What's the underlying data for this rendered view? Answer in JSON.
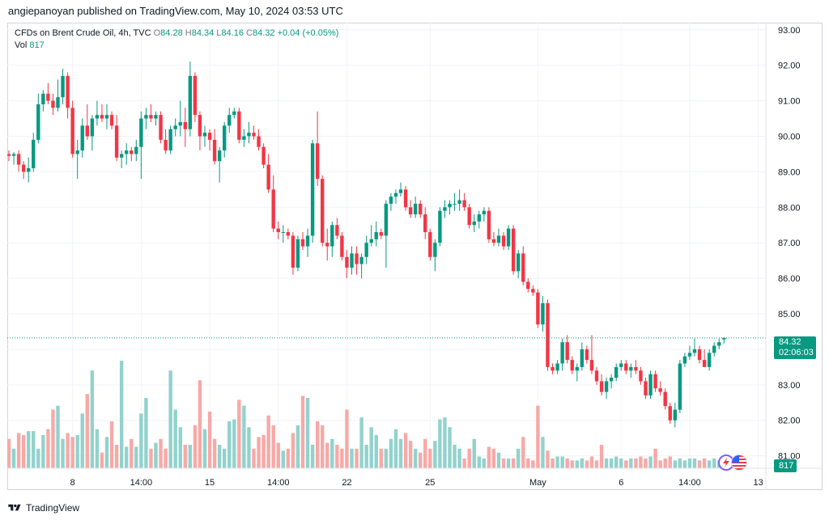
{
  "header": {
    "text": "angiepanoyan published on TradingView.com, May 10, 2024 03:53 UTC"
  },
  "legend": {
    "symbol": "CFDs on Brent Crude Oil, 4h, TVC",
    "o_label": "O",
    "o_value": "84.28",
    "h_label": "H",
    "h_value": "84.34",
    "l_label": "L",
    "l_value": "84.16",
    "c_label": "C",
    "c_value": "84.32",
    "change": "+0.04 (+0.05%)",
    "vol_label": "Vol",
    "vol_value": "817"
  },
  "last_price": {
    "price": "84.32",
    "countdown": "02:06:03",
    "volume": "817"
  },
  "footer": {
    "brand": "TradingView"
  },
  "colors": {
    "up": "#089981",
    "down": "#f23645",
    "up_vol": "#92d2cc",
    "down_vol": "#f7a9a7",
    "grid": "#f0f3fa",
    "text": "#131722"
  },
  "icons": [
    "bolt-event-icon",
    "us-flag-icon",
    "tradingview-logo-icon"
  ],
  "chart_data": {
    "type": "candlestick",
    "title": "CFDs on Brent Crude Oil, 4h, TVC",
    "ylim": [
      80.65,
      93.2
    ],
    "y_ticks": [
      "93.00",
      "92.00",
      "91.00",
      "90.00",
      "89.00",
      "88.00",
      "87.00",
      "86.00",
      "85.00",
      "84.00",
      "83.00",
      "82.00",
      "81.00"
    ],
    "x_ticks": [
      {
        "label": "8",
        "index": 13
      },
      {
        "label": "14:00",
        "index": 27
      },
      {
        "label": "15",
        "index": 41
      },
      {
        "label": "14:00",
        "index": 55
      },
      {
        "label": "22",
        "index": 69
      },
      {
        "label": "25",
        "index": 86
      },
      {
        "label": "May",
        "index": 108
      },
      {
        "label": "6",
        "index": 125
      },
      {
        "label": "14:00",
        "index": 139
      },
      {
        "label": "13",
        "index": 153
      }
    ],
    "ohlc": [
      [
        89.5,
        89.6,
        89.3,
        89.45
      ],
      [
        89.45,
        89.55,
        89.2,
        89.5
      ],
      [
        89.5,
        89.6,
        89.0,
        89.2
      ],
      [
        89.2,
        89.3,
        88.8,
        89.0
      ],
      [
        89.0,
        89.4,
        88.7,
        89.1
      ],
      [
        89.1,
        90.1,
        89.0,
        89.9
      ],
      [
        89.9,
        91.2,
        89.8,
        90.9
      ],
      [
        90.9,
        91.3,
        90.7,
        91.2
      ],
      [
        91.2,
        91.5,
        90.9,
        91.0
      ],
      [
        91.0,
        91.2,
        90.6,
        90.8
      ],
      [
        90.8,
        91.6,
        90.7,
        91.1
      ],
      [
        91.1,
        91.9,
        90.9,
        91.7
      ],
      [
        91.7,
        91.8,
        90.5,
        90.8
      ],
      [
        90.8,
        91.0,
        89.4,
        89.5
      ],
      [
        89.5,
        89.9,
        88.8,
        89.6
      ],
      [
        89.6,
        90.5,
        89.4,
        90.3
      ],
      [
        90.3,
        90.9,
        89.9,
        90.0
      ],
      [
        90.0,
        90.6,
        89.6,
        90.5
      ],
      [
        90.5,
        91.0,
        90.3,
        90.6
      ],
      [
        90.6,
        90.9,
        90.4,
        90.5
      ],
      [
        90.5,
        90.9,
        90.2,
        90.6
      ],
      [
        90.6,
        90.7,
        90.2,
        90.3
      ],
      [
        90.3,
        90.6,
        89.3,
        89.4
      ],
      [
        89.4,
        89.6,
        89.1,
        89.5
      ],
      [
        89.5,
        89.8,
        89.2,
        89.6
      ],
      [
        89.6,
        89.7,
        89.3,
        89.5
      ],
      [
        89.5,
        89.9,
        89.3,
        89.7
      ],
      [
        89.7,
        90.7,
        88.8,
        90.5
      ],
      [
        90.5,
        90.8,
        90.2,
        90.6
      ],
      [
        90.6,
        90.9,
        90.4,
        90.5
      ],
      [
        90.5,
        90.7,
        90.3,
        90.6
      ],
      [
        90.6,
        90.7,
        89.8,
        89.9
      ],
      [
        89.9,
        90.2,
        89.5,
        89.6
      ],
      [
        89.6,
        90.3,
        89.5,
        90.2
      ],
      [
        90.2,
        90.5,
        90.0,
        90.3
      ],
      [
        90.3,
        91.0,
        90.0,
        90.4
      ],
      [
        90.4,
        90.8,
        89.7,
        90.2
      ],
      [
        90.2,
        92.1,
        90.0,
        91.7
      ],
      [
        91.7,
        91.8,
        90.4,
        90.6
      ],
      [
        90.6,
        90.7,
        89.6,
        90.0
      ],
      [
        90.0,
        90.3,
        89.7,
        90.1
      ],
      [
        90.1,
        90.2,
        89.6,
        89.9
      ],
      [
        89.9,
        90.2,
        89.2,
        89.3
      ],
      [
        89.3,
        89.7,
        88.7,
        89.6
      ],
      [
        89.6,
        90.4,
        89.4,
        90.3
      ],
      [
        90.3,
        90.8,
        90.1,
        90.6
      ],
      [
        90.6,
        90.8,
        90.5,
        90.7
      ],
      [
        90.7,
        90.8,
        89.8,
        89.9
      ],
      [
        89.9,
        90.2,
        89.7,
        90.0
      ],
      [
        90.0,
        90.4,
        89.8,
        90.1
      ],
      [
        90.1,
        90.3,
        89.9,
        90.0
      ],
      [
        90.0,
        90.2,
        89.6,
        89.7
      ],
      [
        89.7,
        89.8,
        89.1,
        89.2
      ],
      [
        89.2,
        89.5,
        88.4,
        88.5
      ],
      [
        88.5,
        88.9,
        87.3,
        87.4
      ],
      [
        87.4,
        87.6,
        87.1,
        87.3
      ],
      [
        87.3,
        87.5,
        87.0,
        87.3
      ],
      [
        87.3,
        87.4,
        87.1,
        87.2
      ],
      [
        87.2,
        87.3,
        86.1,
        86.3
      ],
      [
        86.3,
        87.2,
        86.2,
        87.1
      ],
      [
        87.1,
        87.3,
        86.8,
        86.9
      ],
      [
        86.9,
        87.4,
        86.6,
        87.2
      ],
      [
        87.2,
        89.9,
        87.0,
        89.8
      ],
      [
        89.8,
        90.7,
        88.6,
        88.8
      ],
      [
        88.8,
        88.9,
        86.9,
        87.0
      ],
      [
        87.0,
        87.4,
        86.5,
        86.9
      ],
      [
        86.9,
        87.6,
        86.6,
        87.5
      ],
      [
        87.5,
        87.7,
        87.1,
        87.2
      ],
      [
        87.2,
        87.3,
        86.5,
        86.6
      ],
      [
        86.6,
        86.8,
        86.0,
        86.3
      ],
      [
        86.3,
        86.9,
        86.1,
        86.7
      ],
      [
        86.7,
        86.9,
        86.1,
        86.4
      ],
      [
        86.4,
        86.7,
        86.0,
        86.6
      ],
      [
        86.6,
        87.2,
        86.4,
        87.0
      ],
      [
        87.0,
        87.5,
        86.9,
        87.1
      ],
      [
        87.1,
        87.6,
        86.9,
        87.3
      ],
      [
        87.3,
        87.4,
        87.1,
        87.2
      ],
      [
        87.2,
        88.2,
        86.3,
        88.1
      ],
      [
        88.1,
        88.4,
        87.9,
        88.3
      ],
      [
        88.3,
        88.5,
        88.1,
        88.4
      ],
      [
        88.4,
        88.7,
        88.3,
        88.5
      ],
      [
        88.5,
        88.6,
        87.9,
        88.0
      ],
      [
        88.0,
        88.2,
        87.7,
        87.8
      ],
      [
        87.8,
        88.3,
        87.7,
        88.1
      ],
      [
        88.1,
        88.2,
        87.7,
        87.8
      ],
      [
        87.8,
        88.0,
        87.1,
        87.3
      ],
      [
        87.3,
        87.4,
        86.5,
        86.6
      ],
      [
        86.6,
        87.1,
        86.2,
        87.0
      ],
      [
        87.0,
        88.0,
        86.9,
        87.9
      ],
      [
        87.9,
        88.2,
        87.7,
        88.0
      ],
      [
        88.0,
        88.2,
        87.8,
        88.1
      ],
      [
        88.1,
        88.4,
        87.9,
        88.1
      ],
      [
        88.1,
        88.5,
        87.9,
        88.2
      ],
      [
        88.2,
        88.4,
        87.9,
        88.0
      ],
      [
        88.0,
        88.1,
        87.4,
        87.5
      ],
      [
        87.5,
        87.8,
        87.3,
        87.6
      ],
      [
        87.6,
        87.9,
        87.4,
        87.8
      ],
      [
        87.8,
        88.0,
        87.6,
        87.9
      ],
      [
        87.9,
        88.0,
        87.0,
        87.1
      ],
      [
        87.1,
        87.3,
        86.9,
        87.0
      ],
      [
        87.0,
        87.4,
        86.9,
        87.2
      ],
      [
        87.2,
        87.3,
        86.8,
        86.9
      ],
      [
        86.9,
        87.5,
        86.8,
        87.4
      ],
      [
        87.4,
        87.5,
        86.1,
        86.2
      ],
      [
        86.2,
        86.8,
        86.0,
        86.7
      ],
      [
        86.7,
        86.9,
        85.8,
        85.9
      ],
      [
        85.9,
        86.0,
        85.6,
        85.7
      ],
      [
        85.7,
        85.8,
        85.5,
        85.6
      ],
      [
        85.6,
        85.7,
        84.6,
        84.7
      ],
      [
        84.7,
        85.5,
        84.5,
        85.3
      ],
      [
        85.3,
        85.4,
        83.4,
        83.5
      ],
      [
        83.5,
        83.6,
        83.3,
        83.4
      ],
      [
        83.4,
        83.7,
        83.3,
        83.6
      ],
      [
        83.6,
        84.3,
        83.4,
        84.2
      ],
      [
        84.2,
        84.4,
        83.6,
        83.7
      ],
      [
        83.7,
        83.8,
        83.3,
        83.4
      ],
      [
        83.4,
        83.6,
        83.1,
        83.5
      ],
      [
        83.5,
        84.2,
        83.4,
        84.0
      ],
      [
        84.0,
        84.1,
        83.6,
        83.7
      ],
      [
        83.7,
        84.4,
        83.3,
        83.4
      ],
      [
        83.4,
        83.5,
        83.0,
        83.1
      ],
      [
        83.1,
        83.3,
        82.7,
        82.8
      ],
      [
        82.8,
        83.2,
        82.6,
        83.1
      ],
      [
        83.1,
        83.3,
        82.9,
        83.2
      ],
      [
        83.2,
        83.6,
        83.1,
        83.5
      ],
      [
        83.5,
        83.7,
        83.4,
        83.6
      ],
      [
        83.6,
        83.7,
        83.3,
        83.4
      ],
      [
        83.4,
        83.6,
        83.2,
        83.5
      ],
      [
        83.5,
        83.7,
        83.3,
        83.4
      ],
      [
        83.4,
        83.5,
        83.0,
        83.1
      ],
      [
        83.1,
        83.2,
        82.6,
        82.7
      ],
      [
        82.7,
        83.4,
        82.6,
        83.3
      ],
      [
        83.3,
        83.4,
        82.8,
        82.9
      ],
      [
        82.9,
        83.1,
        82.7,
        82.8
      ],
      [
        82.8,
        82.9,
        82.3,
        82.4
      ],
      [
        82.4,
        82.5,
        81.9,
        82.0
      ],
      [
        82.0,
        82.5,
        81.8,
        82.3
      ],
      [
        82.3,
        83.7,
        82.2,
        83.6
      ],
      [
        83.6,
        83.9,
        83.5,
        83.8
      ],
      [
        83.8,
        84.1,
        83.7,
        83.9
      ],
      [
        83.9,
        84.3,
        83.8,
        84.0
      ],
      [
        84.0,
        84.1,
        83.6,
        83.7
      ],
      [
        83.7,
        84.0,
        83.5,
        83.5
      ],
      [
        83.5,
        84.0,
        83.4,
        83.9
      ],
      [
        83.9,
        84.2,
        83.8,
        84.1
      ],
      [
        84.1,
        84.3,
        84.0,
        84.2
      ],
      [
        84.28,
        84.34,
        84.16,
        84.32
      ]
    ],
    "volume": [
      1.5,
      1.0,
      1.8,
      1.7,
      1.9,
      1.9,
      1.0,
      1.7,
      2.0,
      3.0,
      3.2,
      1.5,
      1.8,
      1.6,
      1.7,
      2.8,
      3.8,
      5.0,
      2.0,
      0.8,
      1.6,
      2.4,
      1.2,
      5.5,
      1.1,
      1.5,
      1.1,
      2.8,
      3.6,
      1.0,
      1.3,
      1.5,
      1.0,
      5.0,
      3.0,
      2.1,
      1.2,
      1.2,
      2.2,
      4.5,
      2.0,
      2.9,
      1.5,
      1.2,
      1.0,
      2.4,
      2.5,
      3.5,
      3.2,
      2.1,
      1.0,
      1.6,
      1.7,
      2.7,
      2.2,
      1.3,
      0.9,
      1.0,
      1.8,
      2.2,
      3.7,
      3.6,
      1.2,
      2.4,
      2.2,
      1.3,
      1.5,
      1.2,
      1.0,
      3.0,
      1.0,
      1.0,
      2.6,
      1.2,
      2.1,
      1.7,
      1.0,
      1.0,
      1.5,
      2.0,
      1.5,
      1.8,
      1.4,
      1.0,
      0.8,
      1.5,
      1.0,
      1.4,
      2.5,
      2.6,
      2.1,
      1.2,
      1.0,
      0.5,
      1.0,
      1.5,
      0.6,
      0.5,
      1.1,
      1.0,
      0.8,
      0.5,
      0.5,
      0.5,
      1.0,
      1.6,
      0.5,
      0.4,
      3.2,
      1.6,
      0.9,
      0.5,
      0.6,
      0.6,
      0.5,
      0.4,
      0.4,
      0.5,
      0.4,
      0.6,
      0.4,
      1.2,
      0.5,
      0.5,
      0.6,
      0.5,
      0.4,
      0.5,
      0.5,
      0.6,
      0.5,
      0.6,
      1.0,
      0.4,
      0.5,
      0.6,
      0.4,
      0.5,
      0.4,
      0.5,
      0.5,
      0.4,
      0.5,
      0.4,
      0.5,
      0.4,
      0.3
    ],
    "volume_scale_max": 6.0,
    "last_price_line": 84.32
  }
}
